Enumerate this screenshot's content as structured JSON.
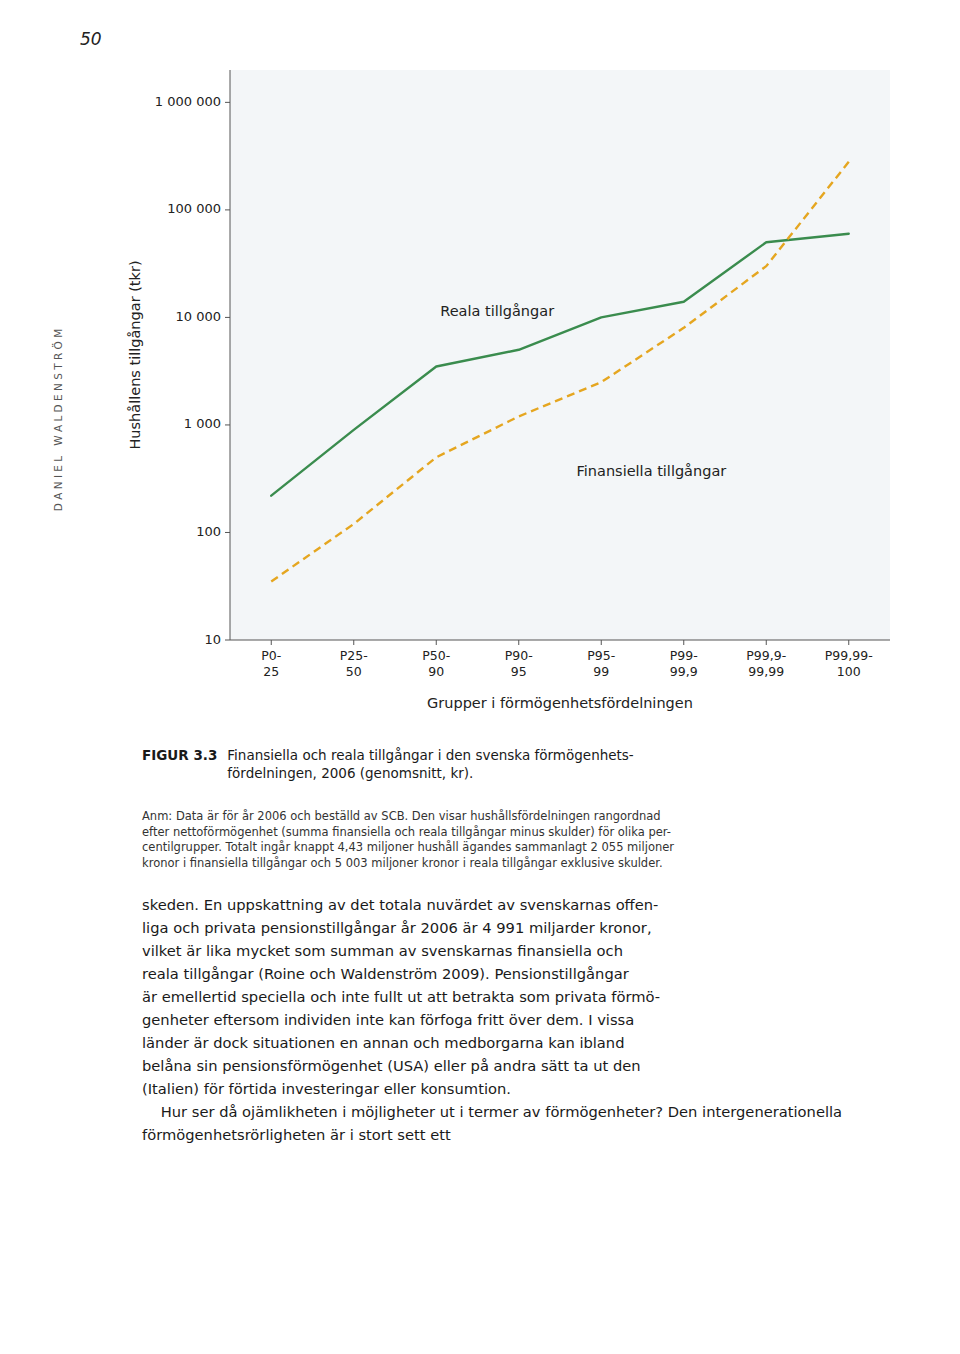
{
  "chart_data": {
    "type": "line",
    "x_label": "Grupper i förmögenhetsfördelningen",
    "y_label": "Hushållens tillgångar (tkr)",
    "categories": [
      "P0-\n25",
      "P25-\n50",
      "P50-\n90",
      "P90-\n95",
      "P95-\n99",
      "P99-\n99,9",
      "P99,9-\n99,99",
      "P99,99-\n100"
    ],
    "series": [
      {
        "name": "Reala tillgångar",
        "color": "#3a8c4e",
        "line_style": "solid",
        "values": [
          220,
          900,
          3500,
          5000,
          10000,
          14000,
          50000,
          60000
        ]
      },
      {
        "name": "Finansiella tillgångar",
        "color": "#e5a620",
        "line_style": "dashed",
        "values": [
          35,
          120,
          500,
          1200,
          2500,
          8000,
          30000,
          280000
        ]
      }
    ],
    "log": "y",
    "ylim": [
      10,
      2000000
    ],
    "yticks": [
      10,
      100,
      {
        "value": 1000,
        "label": "1 000"
      },
      {
        "value": 10000,
        "label": "10 000"
      },
      {
        "value": 100000,
        "label": "100 000"
      },
      {
        "value": 1000000,
        "label": "1 000 000"
      }
    ],
    "grid": false,
    "annotations": [
      "50",
      "D A N I E L   W A L D E N S T R Ö M",
      "FIGUR 3.3",
      "Finansiella och reala tillgångar i den svenska förmögenhets-\nfördelningen, 2006 (genomsnitt, kr).",
      "Anm: Data är för år 2006 och beställd av SCB. Den visar hushållsfördelningen rangordnad\nefter nettoförmögenhet (summa finansiella och reala tillgångar minus skulder) för olika per-\ncentilgrupper. Totalt ingår knappt 4,43 miljoner hushåll ägandes sammanlagt 2 055 miljoner\nkronor i finansiella tillgångar och 5 003 miljoner kronor i reala tillgångar exklusive skulder.",
      "skeden. En uppskattning av det totala nuvärdet av svenskarnas offen-\nliga och privata pensionstillgångar år 2006 är 4 991 miljarder kronor,\nvilket är lika mycket som summan av svenskarnas finansiella och\nreala tillgångar (Roine och Waldenström 2009). Pensionstillgångar\när emellertid speciella och inte fullt ut att betrakta som privata förmö-\ngenheter eftersom individen inte kan förfoga fritt över dem. I vissa\nländer är dock situationen en annan och medborgarna kan ibland\nbelåna sin pensionsförmögenhet (USA) eller på andra sätt ta ut den\n(Italien) för förtida investeringar eller konsumtion.\n    Hur ser då ojämlikheten i möjligheter ut i termer av förmögenheter? Den intergenerationella förmögenhetsrörligheten är i stort sett ett"
    ]
  }
}
